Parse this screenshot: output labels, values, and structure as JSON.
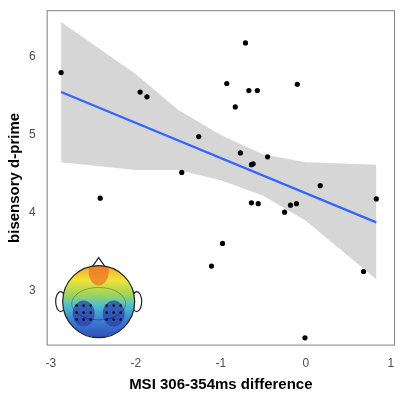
{
  "chart_data": {
    "type": "scatter",
    "x_label": "MSI 306-354ms difference",
    "y_label": "bisensory d-prime",
    "xlim": [
      -3.05,
      1.05
    ],
    "xticks": [
      -3,
      -2,
      -1,
      0,
      1
    ],
    "ylim": [
      2.3,
      6.6
    ],
    "yticks": [
      3,
      4,
      5,
      6
    ],
    "grid": false,
    "series": [
      {
        "type": "band",
        "color": "#999999",
        "x": [
          -2.88,
          -2,
          -1.5,
          -1,
          -0.5,
          0,
          0.83
        ],
        "lower": [
          4.65,
          4.55,
          4.55,
          4.42,
          4.22,
          3.9,
          3.15
        ],
        "upper": [
          6.45,
          5.78,
          5.32,
          5.0,
          4.75,
          4.65,
          4.62
        ]
      },
      {
        "type": "line",
        "color": "#3366ff",
        "x": [
          -2.88,
          0.83
        ],
        "values": [
          5.55,
          3.88
        ]
      },
      {
        "type": "scatter",
        "color": "#000000",
        "marker": "circle",
        "x": [
          -2.88,
          -2.42,
          -1.95,
          -1.87,
          -1.46,
          -1.26,
          -1.11,
          -0.98,
          -0.93,
          -0.83,
          -0.77,
          -0.71,
          -0.67,
          -0.64,
          -0.62,
          -0.64,
          -0.57,
          -0.56,
          -0.45,
          -0.25,
          -0.18,
          -0.11,
          -0.1,
          0.17,
          -0.01,
          0.68,
          0.83
        ],
        "values": [
          5.8,
          4.19,
          5.55,
          5.49,
          4.52,
          4.98,
          3.32,
          3.61,
          5.66,
          5.36,
          4.77,
          6.18,
          5.57,
          4.62,
          4.63,
          4.13,
          5.57,
          4.12,
          4.72,
          4.01,
          4.1,
          4.12,
          5.65,
          4.35,
          2.4,
          3.25,
          4.18
        ]
      }
    ]
  }
}
